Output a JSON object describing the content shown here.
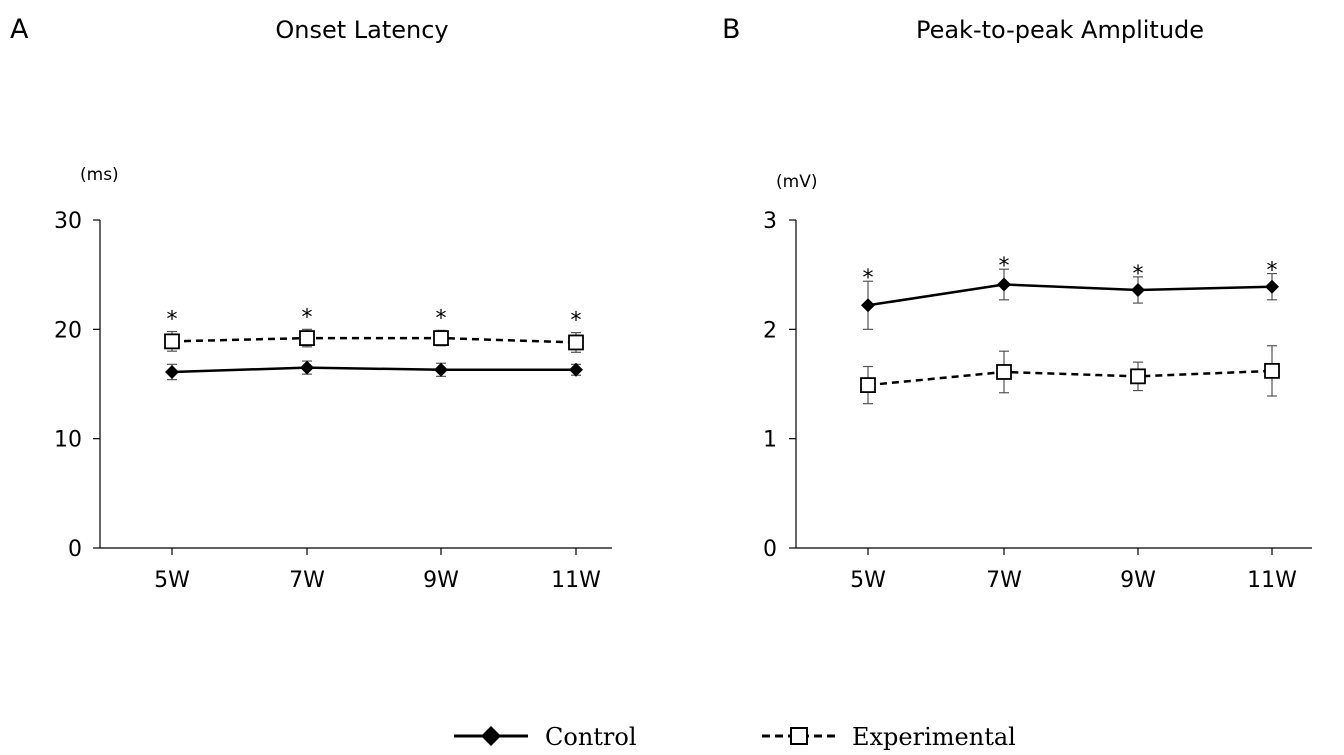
{
  "chart_data": [
    {
      "type": "line",
      "panel_label": "A",
      "title": "Onset Latency",
      "ylabel": "(ms)",
      "ylim": [
        0,
        30
      ],
      "yticks": [
        "0",
        "10",
        "20",
        "30"
      ],
      "categories": [
        "5W",
        "7W",
        "9W",
        "11W"
      ],
      "grid": false,
      "series": [
        {
          "name": "Control",
          "values": [
            16.1,
            16.5,
            16.3,
            16.3
          ],
          "errors": [
            0.7,
            0.6,
            0.6,
            0.5
          ],
          "marker": "filled-diamond",
          "line": "solid"
        },
        {
          "name": "Experimental",
          "values": [
            18.9,
            19.2,
            19.2,
            18.8
          ],
          "errors": [
            0.9,
            0.8,
            0.7,
            0.9
          ],
          "marker": "open-square",
          "line": "dashed"
        }
      ],
      "annotations": [
        "*",
        "*",
        "*",
        "*"
      ]
    },
    {
      "type": "line",
      "panel_label": "B",
      "title": "Peak-to-peak Amplitude",
      "ylabel": "(mV)",
      "ylim": [
        0,
        3
      ],
      "yticks": [
        "0",
        "1",
        "2",
        "3"
      ],
      "categories": [
        "5W",
        "7W",
        "9W",
        "11W"
      ],
      "grid": false,
      "series": [
        {
          "name": "Control",
          "values": [
            2.22,
            2.41,
            2.36,
            2.39
          ],
          "errors": [
            0.22,
            0.14,
            0.12,
            0.12
          ],
          "marker": "filled-diamond",
          "line": "solid"
        },
        {
          "name": "Experimental",
          "values": [
            1.49,
            1.61,
            1.57,
            1.62
          ],
          "errors": [
            0.17,
            0.19,
            0.13,
            0.23
          ],
          "marker": "open-square",
          "line": "dashed"
        }
      ],
      "annotations": [
        "*",
        "*",
        "*",
        "*"
      ]
    }
  ],
  "legend": {
    "position": "bottom-center",
    "items": [
      {
        "label": "Control",
        "marker": "filled-diamond",
        "line": "solid"
      },
      {
        "label": "Experimental",
        "marker": "open-square",
        "line": "dashed"
      }
    ]
  }
}
